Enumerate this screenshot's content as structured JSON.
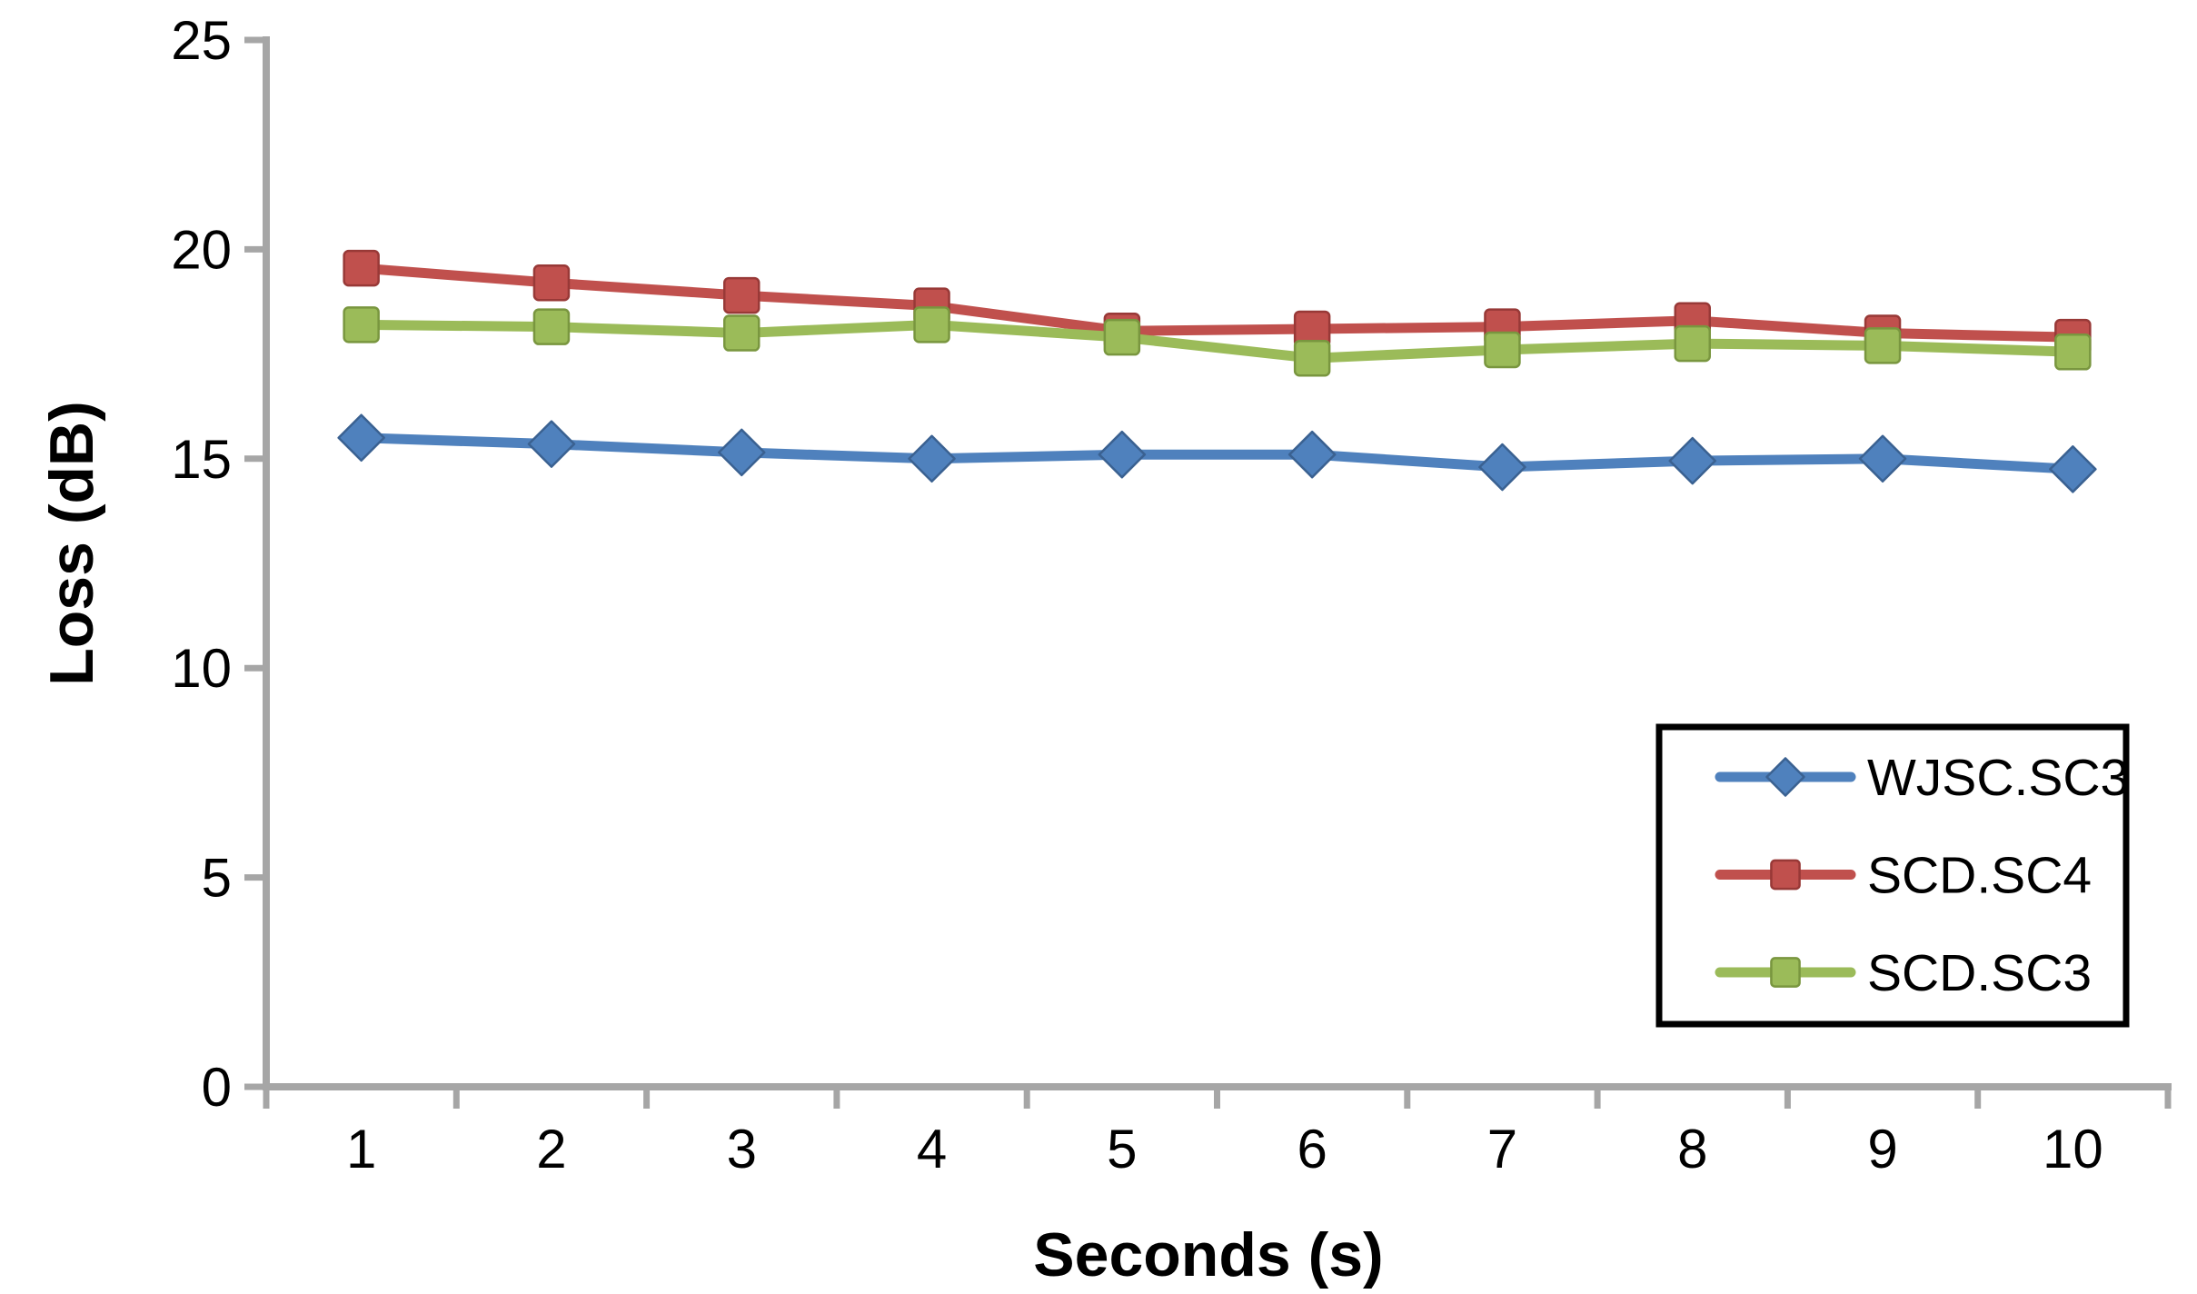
{
  "chart_data": {
    "type": "line",
    "title": "",
    "xlabel": "Seconds (s)",
    "ylabel": "Loss (dB)",
    "categories": [
      "1",
      "2",
      "3",
      "4",
      "5",
      "6",
      "7",
      "8",
      "9",
      "10"
    ],
    "yticks": [
      0,
      5,
      10,
      15,
      20,
      25
    ],
    "ylim": [
      0,
      25
    ],
    "grid": false,
    "legend_position": "inside-lower-right",
    "axis_color": "#A6A6A6",
    "text_color": "#000000",
    "background_color": "#FFFFFF",
    "legend_border_color": "#000000",
    "series": [
      {
        "name": "WJSC.SC3",
        "marker": "diamond",
        "color": "#4F81BD",
        "marker_border": "#3A6191",
        "values": [
          15.5,
          15.35,
          15.15,
          15.0,
          15.1,
          15.1,
          14.8,
          14.95,
          15.0,
          14.75
        ]
      },
      {
        "name": "SCD.SC4",
        "marker": "square",
        "color": "#C0504D",
        "marker_border": "#983937",
        "values": [
          19.55,
          19.2,
          18.9,
          18.65,
          18.05,
          18.1,
          18.15,
          18.3,
          18.0,
          17.9
        ]
      },
      {
        "name": "SCD.SC3",
        "marker": "square",
        "color": "#9BBB59",
        "marker_border": "#79963F",
        "values": [
          18.2,
          18.15,
          18.0,
          18.2,
          17.9,
          17.4,
          17.6,
          17.75,
          17.7,
          17.55
        ]
      }
    ]
  }
}
